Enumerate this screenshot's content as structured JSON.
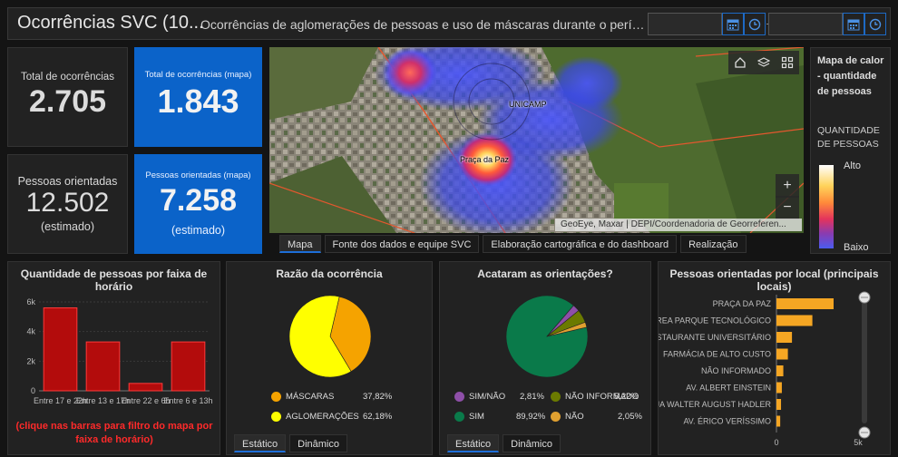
{
  "header": {
    "title": "Ocorrências SVC (10...",
    "subtitle": "Ocorrências de aglomerações de pessoas e uso de máscaras durante o períod..."
  },
  "indicators": {
    "total": {
      "label": "Total de ocorrências",
      "value": "2.705"
    },
    "total_map": {
      "label": "Total de ocorrências (mapa)",
      "value": "1.843"
    },
    "people": {
      "label": "Pessoas orientadas",
      "value": "12.502",
      "note": "(estimado)"
    },
    "people_map": {
      "label": "Pessoas orientadas (mapa)",
      "value": "7.258",
      "note": "(estimado)"
    }
  },
  "map": {
    "labels": {
      "unicamp": "UNICAMP",
      "praca": "Praça da Paz"
    },
    "attribution": "GeoEye, Maxar | DEPI/Coordenadoria de Georreferen...",
    "tabs": [
      "Mapa",
      "Fonte dos dados e equipe SVC",
      "Elaboração cartográfica e do dashboard",
      "Realização"
    ],
    "active_tab": "Mapa",
    "zoom_in": "+",
    "zoom_out": "−"
  },
  "legend": {
    "title": "Mapa de calor - quantidade de pessoas",
    "field": "QUANTIDADE DE PESSOAS",
    "high": "Alto",
    "low": "Baixo"
  },
  "colors": {
    "accent_blue": "#0b63c9",
    "bar_red": "#b30c0c",
    "bar_orange": "#f5a623",
    "pie_yellow": "#ffff00",
    "pie_orange": "#f5a300",
    "pie_green": "#0a7a4a",
    "pie_olive": "#6b7a00",
    "pie_purple": "#8e4fa8",
    "pie_gold": "#e0a030"
  },
  "charts": {
    "hours": {
      "title": "Quantidade de pessoas por faixa de horário",
      "note": "(clique nas barras para filtro do mapa por faixa de horário)"
    },
    "reason": {
      "title": "Razão da ocorrência",
      "tabs": [
        "Estático",
        "Dinâmico"
      ]
    },
    "followed": {
      "title": "Acataram as orientações?",
      "tabs": [
        "Estático",
        "Dinâmico"
      ]
    },
    "places": {
      "title": "Pessoas orientadas por local (principais locais)"
    }
  },
  "chart_data": [
    {
      "type": "bar",
      "title": "Quantidade de pessoas por faixa de horário",
      "categories": [
        "Entre 17 e 22h",
        "Entre 13 e 17h",
        "Entre 22 e 6h",
        "Entre 6 e 13h"
      ],
      "values": [
        5600,
        3300,
        500,
        3300
      ],
      "yticks": [
        "0",
        "2k",
        "4k",
        "6k"
      ],
      "ylim": [
        0,
        6000
      ],
      "grid": true
    },
    {
      "type": "pie",
      "title": "Razão da ocorrência",
      "slices": [
        {
          "name": "MÁSCARAS",
          "value": 37.82,
          "pct": "37,82%",
          "color": "#f5a300"
        },
        {
          "name": "AGLOMERAÇÕES",
          "value": 62.18,
          "pct": "62,18%",
          "color": "#ffff00"
        }
      ]
    },
    {
      "type": "pie",
      "title": "Acataram as orientações?",
      "slices": [
        {
          "name": "SIM",
          "value": 89.92,
          "pct": "89,92%",
          "color": "#0a7a4a"
        },
        {
          "name": "SIM/NÃO",
          "value": 2.81,
          "pct": "2,81%",
          "color": "#8e4fa8"
        },
        {
          "name": "NÃO INFORMADO",
          "value": 5.22,
          "pct": "5,22%",
          "color": "#6b7a00"
        },
        {
          "name": "NÃO",
          "value": 2.05,
          "pct": "2,05%",
          "color": "#e0a030"
        }
      ]
    },
    {
      "type": "bar",
      "orientation": "horizontal",
      "title": "Pessoas orientadas por local (principais locais)",
      "categories": [
        "PRAÇA DA PAZ",
        "ÁREA PARQUE TECNOLÓGICO",
        "RESTAURANTE UNIVERSITÁRIO",
        "FARMÁCIA DE ALTO CUSTO",
        "NÃO INFORMADO",
        "AV. ALBERT EINSTEIN",
        "RUA WALTER AUGUST HADLER",
        "AV. ÉRICO VERÍSSIMO"
      ],
      "values": [
        3500,
        2200,
        950,
        700,
        420,
        330,
        280,
        230
      ],
      "xticks": [
        "0",
        "5k"
      ],
      "xlim": [
        0,
        5000
      ]
    }
  ]
}
